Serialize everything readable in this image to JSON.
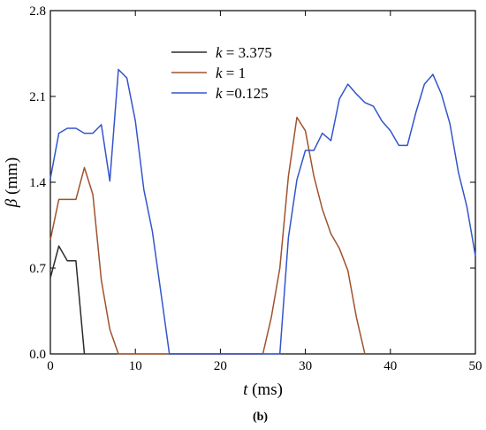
{
  "chart_data": {
    "type": "line",
    "xlabel": {
      "symbol": "t",
      "unit": " (ms)"
    },
    "ylabel": {
      "symbol": "β",
      "unit": " (mm)"
    },
    "caption": "(b)",
    "xlim": [
      0,
      50
    ],
    "ylim": [
      0,
      2.8
    ],
    "x_ticks": [
      0,
      10,
      20,
      30,
      40,
      50
    ],
    "y_ticks": [
      "0.0",
      "0.7",
      "1.4",
      "2.1",
      "2.8"
    ],
    "grid": false,
    "legend_position": "top-center",
    "series": [
      {
        "name": "k = 3.375",
        "legend": {
          "symbol": "k",
          "text": " = 3.375"
        },
        "color": "#2b2b2b",
        "points": [
          [
            0,
            0.62
          ],
          [
            1,
            0.88
          ],
          [
            2,
            0.76
          ],
          [
            3,
            0.76
          ],
          [
            4,
            0.0
          ]
        ]
      },
      {
        "name": "k = 1",
        "legend": {
          "symbol": "k",
          "text": " = 1"
        },
        "color": "#a0522d",
        "points": [
          [
            0,
            0.93
          ],
          [
            1,
            1.26
          ],
          [
            2,
            1.26
          ],
          [
            3,
            1.26
          ],
          [
            4,
            1.52
          ],
          [
            5,
            1.3
          ],
          [
            6,
            0.6
          ],
          [
            7,
            0.2
          ],
          [
            8,
            0.0
          ],
          [
            25,
            0.0
          ],
          [
            26,
            0.3
          ],
          [
            27,
            0.7
          ],
          [
            28,
            1.45
          ],
          [
            29,
            1.93
          ],
          [
            30,
            1.82
          ],
          [
            31,
            1.45
          ],
          [
            32,
            1.18
          ],
          [
            33,
            0.98
          ],
          [
            34,
            0.86
          ],
          [
            35,
            0.68
          ],
          [
            36,
            0.3
          ],
          [
            37,
            0.0
          ]
        ]
      },
      {
        "name": "k =0.125",
        "legend": {
          "symbol": "k",
          "text": " =0.125"
        },
        "color": "#3355cc",
        "points": [
          [
            0,
            1.43
          ],
          [
            1,
            1.8
          ],
          [
            2,
            1.84
          ],
          [
            3,
            1.84
          ],
          [
            4,
            1.8
          ],
          [
            5,
            1.8
          ],
          [
            6,
            1.87
          ],
          [
            7,
            1.41
          ],
          [
            8,
            2.32
          ],
          [
            9,
            2.25
          ],
          [
            10,
            1.9
          ],
          [
            11,
            1.34
          ],
          [
            12,
            1.0
          ],
          [
            13,
            0.5
          ],
          [
            14,
            0.0
          ],
          [
            27,
            0.0
          ],
          [
            28,
            0.95
          ],
          [
            29,
            1.42
          ],
          [
            30,
            1.66
          ],
          [
            31,
            1.66
          ],
          [
            32,
            1.8
          ],
          [
            33,
            1.74
          ],
          [
            34,
            2.08
          ],
          [
            35,
            2.2
          ],
          [
            36,
            2.12
          ],
          [
            37,
            2.05
          ],
          [
            38,
            2.02
          ],
          [
            39,
            1.9
          ],
          [
            40,
            1.82
          ],
          [
            41,
            1.7
          ],
          [
            42,
            1.7
          ],
          [
            43,
            1.97
          ],
          [
            44,
            2.2
          ],
          [
            45,
            2.28
          ],
          [
            46,
            2.12
          ],
          [
            47,
            1.88
          ],
          [
            48,
            1.48
          ],
          [
            49,
            1.2
          ],
          [
            50,
            0.8
          ]
        ]
      }
    ]
  }
}
